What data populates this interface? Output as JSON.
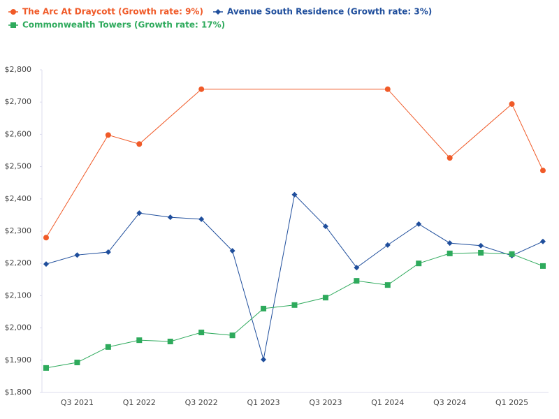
{
  "chart_data": {
    "type": "line",
    "categories": [
      null,
      "Q3 2021",
      null,
      "Q1 2022",
      null,
      "Q3 2022",
      null,
      "Q1 2023",
      null,
      "Q3 2023",
      null,
      "Q1 2024",
      null,
      "Q3 2024",
      null,
      "Q1 2025",
      null
    ],
    "series": [
      {
        "name": "The Arc At Draycott (Growth rate: 9%)",
        "color": "#f05a28",
        "marker": "circle",
        "values": [
          2280,
          null,
          2598,
          2570,
          null,
          2740,
          null,
          null,
          null,
          null,
          null,
          2740,
          null,
          2527,
          null,
          2694,
          2488
        ]
      },
      {
        "name": "Avenue South Residence (Growth rate: 3%)",
        "color": "#1f4e9c",
        "marker": "diamond",
        "values": [
          2198,
          2226,
          2235,
          2356,
          2343,
          2337,
          2239,
          1902,
          2413,
          2315,
          2187,
          2257,
          2322,
          2263,
          2255,
          2224,
          2268
        ]
      },
      {
        "name": "Commonwealth Towers (Growth rate: 17%)",
        "color": "#2eaa5c",
        "marker": "square",
        "values": [
          1876,
          1893,
          1941,
          1962,
          1958,
          1986,
          1977,
          2060,
          2071,
          2094,
          2146,
          2133,
          2200,
          2231,
          2233,
          2229,
          2192
        ]
      }
    ],
    "connect_gaps": true,
    "ylim": [
      1800,
      2800
    ],
    "yticks": [
      {
        "value": 1800,
        "label": "$1,800"
      },
      {
        "value": 1900,
        "label": "$1,900"
      },
      {
        "value": 2000,
        "label": "$2,000"
      },
      {
        "value": 2100,
        "label": "$2,100"
      },
      {
        "value": 2200,
        "label": "$2,200"
      },
      {
        "value": 2300,
        "label": "$2,300"
      },
      {
        "value": 2400,
        "label": "$2,400"
      },
      {
        "value": 2500,
        "label": "$2,500"
      },
      {
        "value": 2600,
        "label": "$2,600"
      },
      {
        "value": 2700,
        "label": "$2,700"
      },
      {
        "value": 2800,
        "label": "$2,800"
      }
    ],
    "grid": false,
    "legend": "top-left"
  }
}
